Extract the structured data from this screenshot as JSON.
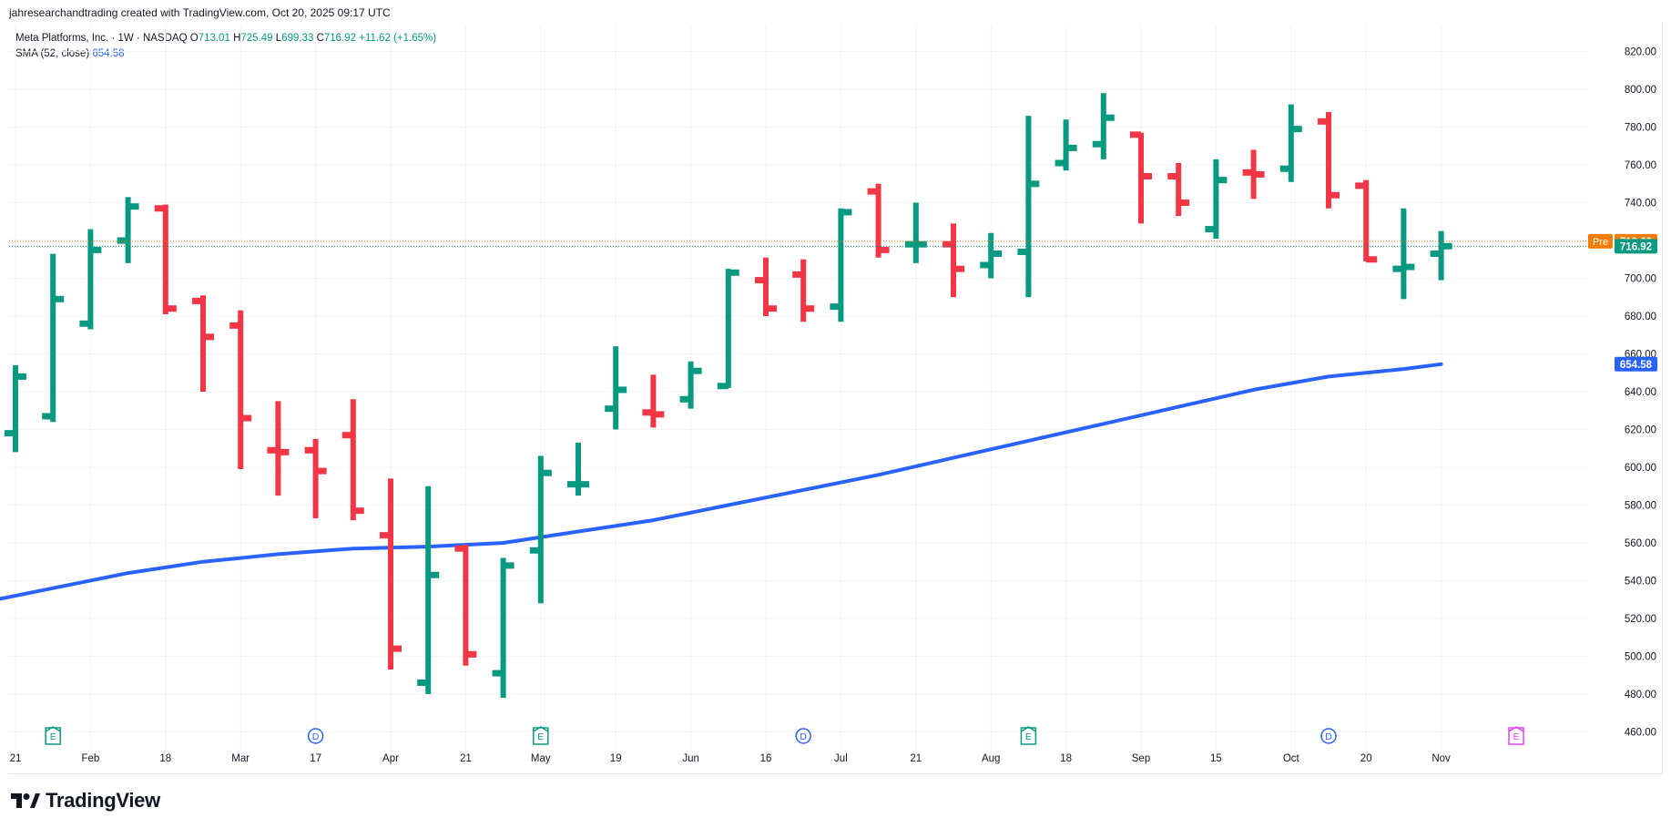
{
  "attribution": "jahresearchandtrading created with TradingView.com, Oct 20, 2025 09:17 UTC",
  "legend": {
    "symbol": "Meta Platforms, Inc. · 1W · NASDAQ",
    "o_label": "O",
    "o_value": "713.01",
    "h_label": "H",
    "h_value": "725.49",
    "l_label": "L",
    "l_value": "699.33",
    "c_label": "C",
    "c_value": "716.92",
    "change": "+11.62 (+1.65%)",
    "sma_label": "SMA (52, close)",
    "sma_value": "654.58"
  },
  "brand": "TradingView",
  "colors": {
    "up": "#089981",
    "down": "#f23645",
    "sma": "#2962ff",
    "pre": "#f57c00",
    "grid": "#f0f3fa"
  },
  "chart_data": {
    "type": "ohlc-bar",
    "y_ticks": [
      "460.00",
      "480.00",
      "500.00",
      "520.00",
      "540.00",
      "560.00",
      "580.00",
      "600.00",
      "620.00",
      "640.00",
      "660.00",
      "680.00",
      "700.00",
      "720.00",
      "740.00",
      "760.00",
      "780.00",
      "800.00",
      "820.00"
    ],
    "ylim": [
      452,
      828
    ],
    "x_ticks": [
      {
        "label": "21",
        "i": 0
      },
      {
        "label": "Feb",
        "i": 2
      },
      {
        "label": "18",
        "i": 4
      },
      {
        "label": "Mar",
        "i": 6
      },
      {
        "label": "17",
        "i": 8
      },
      {
        "label": "Apr",
        "i": 10
      },
      {
        "label": "21",
        "i": 12
      },
      {
        "label": "May",
        "i": 14
      },
      {
        "label": "19",
        "i": 16
      },
      {
        "label": "Jun",
        "i": 18
      },
      {
        "label": "16",
        "i": 20
      },
      {
        "label": "Jul",
        "i": 22
      },
      {
        "label": "21",
        "i": 24
      },
      {
        "label": "Aug",
        "i": 26
      },
      {
        "label": "18",
        "i": 28
      },
      {
        "label": "Sep",
        "i": 30
      },
      {
        "label": "15",
        "i": 32
      },
      {
        "label": "Oct",
        "i": 34
      },
      {
        "label": "20",
        "i": 36
      },
      {
        "label": "Nov",
        "i": 38
      }
    ],
    "bars": [
      {
        "o": 618,
        "h": 654,
        "l": 608,
        "c": 648
      },
      {
        "o": 627,
        "h": 713,
        "l": 624,
        "c": 689
      },
      {
        "o": 676,
        "h": 726,
        "l": 673,
        "c": 715
      },
      {
        "o": 720,
        "h": 743,
        "l": 708,
        "c": 738
      },
      {
        "o": 737,
        "h": 739,
        "l": 681,
        "c": 684
      },
      {
        "o": 688,
        "h": 691,
        "l": 640,
        "c": 669
      },
      {
        "o": 675,
        "h": 683,
        "l": 599,
        "c": 626
      },
      {
        "o": 609,
        "h": 635,
        "l": 585,
        "c": 608
      },
      {
        "o": 609,
        "h": 615,
        "l": 573,
        "c": 598
      },
      {
        "o": 617,
        "h": 636,
        "l": 572,
        "c": 577
      },
      {
        "o": 564,
        "h": 594,
        "l": 493,
        "c": 504
      },
      {
        "o": 486,
        "h": 590,
        "l": 480,
        "c": 543
      },
      {
        "o": 557,
        "h": 559,
        "l": 495,
        "c": 501
      },
      {
        "o": 491,
        "h": 552,
        "l": 478,
        "c": 548
      },
      {
        "o": 556,
        "h": 606,
        "l": 528,
        "c": 597
      },
      {
        "o": 591,
        "h": 613,
        "l": 585,
        "c": 591
      },
      {
        "o": 631,
        "h": 664,
        "l": 620,
        "c": 641
      },
      {
        "o": 629,
        "h": 649,
        "l": 621,
        "c": 628
      },
      {
        "o": 636,
        "h": 656,
        "l": 631,
        "c": 651
      },
      {
        "o": 643,
        "h": 705,
        "l": 642,
        "c": 703
      },
      {
        "o": 699,
        "h": 711,
        "l": 680,
        "c": 684
      },
      {
        "o": 702,
        "h": 710,
        "l": 677,
        "c": 684
      },
      {
        "o": 685,
        "h": 737,
        "l": 677,
        "c": 735
      },
      {
        "o": 746,
        "h": 750,
        "l": 711,
        "c": 715
      },
      {
        "o": 718,
        "h": 740,
        "l": 708,
        "c": 718
      },
      {
        "o": 718,
        "h": 729,
        "l": 690,
        "c": 705
      },
      {
        "o": 707,
        "h": 724,
        "l": 700,
        "c": 713
      },
      {
        "o": 714,
        "h": 786,
        "l": 690,
        "c": 750
      },
      {
        "o": 761,
        "h": 784,
        "l": 757,
        "c": 769
      },
      {
        "o": 771,
        "h": 798,
        "l": 763,
        "c": 785
      },
      {
        "o": 776,
        "h": 777,
        "l": 729,
        "c": 754
      },
      {
        "o": 754,
        "h": 761,
        "l": 733,
        "c": 740
      },
      {
        "o": 726,
        "h": 763,
        "l": 721,
        "c": 752
      },
      {
        "o": 756,
        "h": 768,
        "l": 742,
        "c": 755
      },
      {
        "o": 758,
        "h": 792,
        "l": 751,
        "c": 779
      },
      {
        "o": 783,
        "h": 788,
        "l": 737,
        "c": 744
      },
      {
        "o": 749,
        "h": 752,
        "l": 709,
        "c": 710
      },
      {
        "o": 705,
        "h": 737,
        "l": 689,
        "c": 706
      },
      {
        "o": 713,
        "h": 725,
        "l": 699,
        "c": 717
      }
    ],
    "sma": [
      {
        "i": -1,
        "v": 528
      },
      {
        "i": 1,
        "v": 536
      },
      {
        "i": 3,
        "v": 544
      },
      {
        "i": 5,
        "v": 550
      },
      {
        "i": 7,
        "v": 554
      },
      {
        "i": 9,
        "v": 557
      },
      {
        "i": 11,
        "v": 558
      },
      {
        "i": 13,
        "v": 560
      },
      {
        "i": 15,
        "v": 566
      },
      {
        "i": 17,
        "v": 572
      },
      {
        "i": 19,
        "v": 580
      },
      {
        "i": 21,
        "v": 588
      },
      {
        "i": 23,
        "v": 596
      },
      {
        "i": 25,
        "v": 605
      },
      {
        "i": 27,
        "v": 614
      },
      {
        "i": 29,
        "v": 623
      },
      {
        "i": 31,
        "v": 632
      },
      {
        "i": 33,
        "v": 641
      },
      {
        "i": 35,
        "v": 648
      },
      {
        "i": 37,
        "v": 652
      },
      {
        "i": 38,
        "v": 654.58
      }
    ],
    "events": [
      {
        "i": 1,
        "type": "earnings",
        "label": "E",
        "color": "#089981"
      },
      {
        "i": 8,
        "type": "dividend",
        "label": "D",
        "color": "#2962ff"
      },
      {
        "i": 14,
        "type": "earnings",
        "label": "E",
        "color": "#089981"
      },
      {
        "i": 21,
        "type": "dividend",
        "label": "D",
        "color": "#2962ff"
      },
      {
        "i": 27,
        "type": "earnings",
        "label": "E",
        "color": "#089981"
      },
      {
        "i": 35,
        "type": "dividend",
        "label": "D",
        "color": "#2962ff"
      },
      {
        "i": 40,
        "type": "earnings-upcoming",
        "label": "E",
        "color": "#e040fb"
      }
    ],
    "price_labels": [
      {
        "name": "pre-market",
        "prefix": "Pre",
        "value": 719.6,
        "text": "719.60",
        "color": "#f57c00"
      },
      {
        "name": "last-close",
        "prefix": "",
        "value": 716.92,
        "text": "716.92",
        "color": "#089981"
      },
      {
        "name": "sma",
        "prefix": "",
        "value": 654.58,
        "text": "654.58",
        "color": "#2962ff"
      }
    ]
  }
}
